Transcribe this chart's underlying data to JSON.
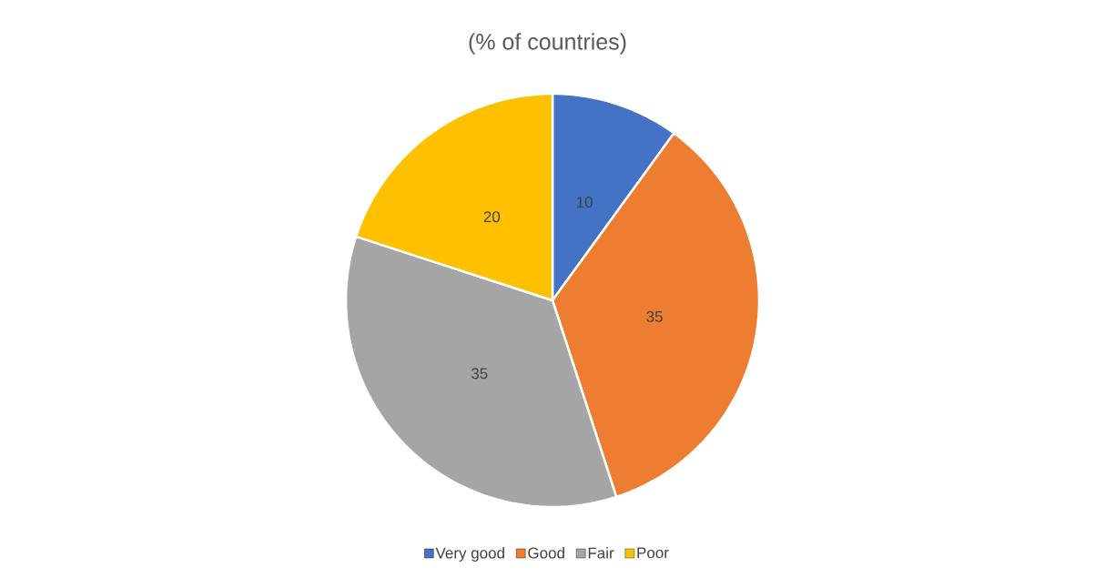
{
  "chart_data": {
    "type": "pie",
    "title": "(% of countries)",
    "categories": [
      "Very good",
      "Good",
      "Fair",
      "Poor"
    ],
    "values": [
      10,
      35,
      35,
      20
    ],
    "colors": [
      "#4472c4",
      "#ed7d31",
      "#a5a5a5",
      "#ffc000"
    ],
    "data_labels": true,
    "legend": "bottom"
  }
}
